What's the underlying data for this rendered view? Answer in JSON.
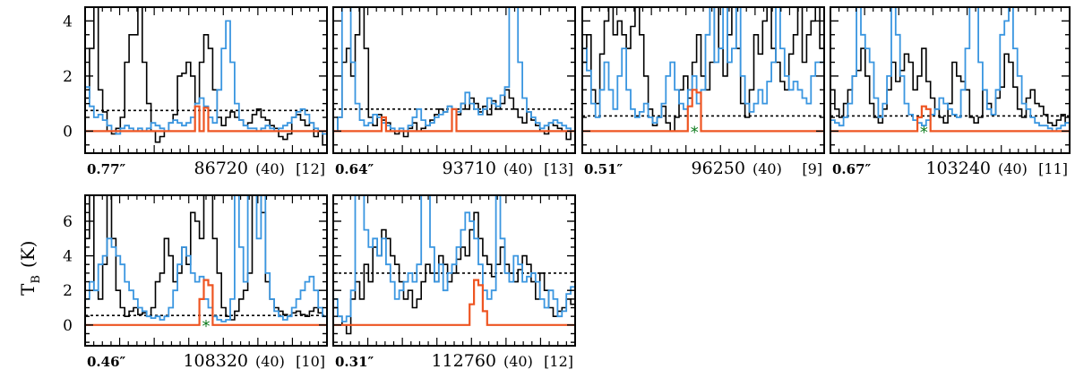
{
  "chart_data": {
    "type": "line",
    "ylabel": "T",
    "ylabel_sub": "B",
    "ylabel_unit": "(K)",
    "series_colors": {
      "observed": "#000000",
      "model_full": "#3a96e0",
      "model_species": "#ee5522",
      "noise_level": "#000000",
      "marker": "#0a7a1a"
    },
    "panels": [
      {
        "beam": "0.77″",
        "frequency": "86720",
        "width": "(40)",
        "index": "[12]",
        "ylim": [
          -0.8,
          4.5
        ],
        "yticks": [
          "0",
          "2",
          "4"
        ],
        "noise": 0.75,
        "star": false,
        "black": [
          1.2,
          3.0,
          4.5,
          1.5,
          0.7,
          0.0,
          -0.1,
          0.1,
          0.5,
          2.5,
          3.5,
          3.5,
          4.5,
          2.5,
          1.0,
          0.0,
          -0.4,
          -0.2,
          0.0,
          0.3,
          0.6,
          2.0,
          2.1,
          2.5,
          2.0,
          1.0,
          2.5,
          3.5,
          3.0,
          1.5,
          0.5,
          0.2,
          0.5,
          0.7,
          0.5,
          0.4,
          0.2,
          0.3,
          0.6,
          0.8,
          0.5,
          0.4,
          0.2,
          0.1,
          -0.2,
          -0.3,
          -0.1,
          0.5,
          0.6,
          0.4,
          0.2,
          0.3,
          -0.2,
          0.0,
          -0.5
        ],
        "blue": [
          1.6,
          0.9,
          0.5,
          0.6,
          0.4,
          0.2,
          0.0,
          -0.1,
          0.1,
          0.2,
          0.1,
          0.0,
          0.1,
          0.0,
          0.1,
          0.3,
          0.2,
          0.1,
          0.0,
          0.3,
          0.4,
          0.3,
          0.2,
          0.3,
          0.5,
          1.0,
          1.2,
          0.9,
          0.5,
          0.3,
          1.5,
          3.0,
          4.0,
          2.5,
          1.0,
          0.4,
          0.2,
          0.1,
          0.1,
          0.0,
          0.1,
          0.2,
          0.1,
          0.0,
          0.1,
          0.2,
          0.3,
          0.5,
          0.7,
          0.8,
          0.6,
          0.3,
          0.1,
          0.0,
          -0.1
        ],
        "orange": [
          [
            25,
            0.9
          ],
          [
            27,
            0.85
          ]
        ]
      },
      {
        "beam": "0.64″",
        "frequency": "93710",
        "width": "(40)",
        "index": "[13]",
        "ylim": [
          -0.8,
          4.5
        ],
        "yticks": [],
        "noise": 0.8,
        "star": false,
        "black": [
          0.0,
          0.5,
          2.5,
          3.0,
          2.0,
          3.5,
          4.5,
          3.0,
          0.5,
          0.2,
          0.6,
          0.4,
          0.3,
          0.0,
          -0.1,
          0.0,
          -0.2,
          0.1,
          0.3,
          0.0,
          0.1,
          0.2,
          0.4,
          0.6,
          0.8,
          0.7,
          0.9,
          0.8,
          0.6,
          1.0,
          0.8,
          1.2,
          1.0,
          0.7,
          0.9,
          0.6,
          1.1,
          0.8,
          1.0,
          1.5,
          1.2,
          0.8,
          0.5,
          0.3,
          0.7,
          0.4,
          0.2,
          0.0,
          -0.1,
          0.3,
          0.2,
          0.1,
          0.0,
          -0.3,
          0.0
        ],
        "blue": [
          0.0,
          0.5,
          4.5,
          4.5,
          2.5,
          1.0,
          0.4,
          0.2,
          0.3,
          0.6,
          0.5,
          0.3,
          0.2,
          0.1,
          0.0,
          0.1,
          0.0,
          0.2,
          0.5,
          0.8,
          0.4,
          0.2,
          0.3,
          0.5,
          0.6,
          0.7,
          0.9,
          0.8,
          0.7,
          1.0,
          1.4,
          1.0,
          0.8,
          0.6,
          0.8,
          1.2,
          1.0,
          0.9,
          1.3,
          1.6,
          4.5,
          4.5,
          2.5,
          1.2,
          0.7,
          0.5,
          0.3,
          0.1,
          0.2,
          0.3,
          0.4,
          0.3,
          0.2,
          0.1,
          0.0
        ],
        "orange": [
          [
            11,
            0.5
          ],
          [
            27,
            0.8
          ]
        ]
      },
      {
        "beam": "0.51″",
        "frequency": "96250",
        "width": "(40)",
        "index": "[9]",
        "ylim": [
          -0.8,
          4.5
        ],
        "yticks": [],
        "noise": 0.55,
        "star": true,
        "black": [
          2.5,
          3.5,
          1.5,
          1.0,
          2.8,
          4.0,
          4.5,
          3.5,
          4.0,
          3.5,
          3.0,
          3.8,
          4.5,
          3.5,
          2.0,
          0.8,
          0.2,
          0.5,
          0.9,
          0.3,
          0.0,
          0.5,
          1.5,
          2.0,
          1.2,
          2.5,
          3.5,
          2.0,
          1.5,
          2.5,
          4.5,
          3.0,
          2.0,
          3.5,
          4.5,
          3.0,
          1.0,
          0.5,
          1.5,
          3.5,
          2.8,
          4.0,
          4.5,
          3.0,
          2.5,
          1.8,
          1.5,
          2.8,
          3.5,
          4.5,
          2.5,
          3.5,
          4.0,
          4.5,
          3.0
        ],
        "blue": [
          3.0,
          2.2,
          1.0,
          0.5,
          1.5,
          2.5,
          1.5,
          0.8,
          2.0,
          3.0,
          1.5,
          0.8,
          0.5,
          0.7,
          1.0,
          0.5,
          0.3,
          0.5,
          1.0,
          2.0,
          2.5,
          1.5,
          1.0,
          0.8,
          1.5,
          2.0,
          1.0,
          1.5,
          3.5,
          4.5,
          2.5,
          3.0,
          4.5,
          2.5,
          3.0,
          4.5,
          2.0,
          1.0,
          0.7,
          1.0,
          1.5,
          1.0,
          1.8,
          2.5,
          4.5,
          3.0,
          2.0,
          1.5,
          1.8,
          1.5,
          1.2,
          1.0,
          2.0,
          2.5,
          2.5
        ],
        "orange": [
          [
            24,
            0.9
          ],
          [
            25,
            1.5
          ],
          [
            26,
            1.4
          ]
        ]
      },
      {
        "beam": "0.67″",
        "frequency": "103240",
        "width": "(40)",
        "index": "[11]",
        "ylim": [
          -0.8,
          4.5
        ],
        "yticks": [],
        "noise": 0.55,
        "star": true,
        "black": [
          1.5,
          0.8,
          0.5,
          1.0,
          1.5,
          2.0,
          2.2,
          3.0,
          2.0,
          1.0,
          0.5,
          0.3,
          0.8,
          1.5,
          2.5,
          1.8,
          2.2,
          2.8,
          2.5,
          1.5,
          2.0,
          3.0,
          1.8,
          1.2,
          0.8,
          0.5,
          0.3,
          1.0,
          2.5,
          2.0,
          1.8,
          1.5,
          0.5,
          0.3,
          0.5,
          1.5,
          1.0,
          0.6,
          1.2,
          1.6,
          2.8,
          2.5,
          1.6,
          0.8,
          0.5,
          1.2,
          1.5,
          1.0,
          0.9,
          0.6,
          0.3,
          0.2,
          0.4,
          0.6,
          0.3
        ],
        "blue": [
          0.4,
          0.3,
          0.2,
          0.5,
          1.0,
          2.0,
          4.5,
          3.5,
          3.0,
          2.5,
          1.2,
          0.5,
          1.0,
          2.0,
          4.5,
          3.5,
          2.0,
          1.0,
          0.6,
          0.4,
          0.3,
          0.2,
          0.4,
          0.6,
          0.8,
          1.2,
          1.0,
          0.8,
          0.6,
          0.5,
          1.5,
          3.0,
          4.5,
          4.5,
          2.5,
          1.5,
          0.8,
          0.6,
          1.5,
          3.5,
          4.0,
          4.5,
          3.0,
          2.0,
          1.0,
          0.8,
          0.5,
          0.3,
          0.2,
          0.2,
          0.1,
          0.0,
          0.1,
          0.2,
          0.3
        ],
        "orange": [
          [
            20,
            0.5
          ],
          [
            21,
            0.9
          ],
          [
            22,
            0.8
          ]
        ]
      },
      {
        "beam": "0.46″",
        "frequency": "108320",
        "width": "(40)",
        "index": "[10]",
        "ylim": [
          -1.2,
          7.5
        ],
        "yticks": [
          "0",
          "2",
          "4",
          "6"
        ],
        "noise": 0.55,
        "star": true,
        "black": [
          5.0,
          7.5,
          2.0,
          1.5,
          3.5,
          7.5,
          5.0,
          2.0,
          1.0,
          0.5,
          0.8,
          1.0,
          0.6,
          0.7,
          0.5,
          1.0,
          2.5,
          3.0,
          5.0,
          4.0,
          2.5,
          3.0,
          4.5,
          3.5,
          6.5,
          6.0,
          5.0,
          7.5,
          7.5,
          5.0,
          3.0,
          1.0,
          0.5,
          0.3,
          0.8,
          1.5,
          2.0,
          3.0,
          7.5,
          7.5,
          6.5,
          2.5,
          1.5,
          1.0,
          0.8,
          0.6,
          0.5,
          0.7,
          0.8,
          0.6,
          0.5,
          0.8,
          1.0,
          0.7,
          0.5
        ],
        "blue": [
          1.5,
          2.5,
          2.0,
          3.5,
          4.0,
          5.0,
          4.5,
          4.0,
          3.5,
          2.5,
          2.0,
          1.5,
          1.0,
          0.8,
          0.5,
          0.4,
          0.5,
          0.3,
          0.5,
          1.0,
          2.0,
          3.5,
          4.5,
          4.0,
          3.0,
          2.5,
          2.8,
          1.5,
          1.0,
          0.5,
          0.3,
          0.2,
          0.3,
          1.5,
          7.5,
          4.5,
          2.5,
          7.5,
          7.5,
          5.0,
          7.5,
          3.0,
          1.5,
          0.8,
          0.5,
          0.3,
          0.5,
          1.0,
          1.5,
          2.0,
          2.5,
          2.8,
          2.0,
          1.0,
          0.5
        ],
        "orange": [
          [
            26,
            1.5
          ],
          [
            27,
            2.6
          ],
          [
            28,
            2.3
          ]
        ]
      },
      {
        "beam": "0.31″",
        "frequency": "112760",
        "width": "(40)",
        "index": "[12]",
        "ylim": [
          -1.2,
          7.5
        ],
        "yticks": [],
        "noise": 3.0,
        "star": false,
        "black": [
          1.0,
          0.5,
          0.0,
          -0.5,
          1.5,
          2.5,
          1.5,
          3.5,
          2.5,
          4.5,
          4.0,
          5.5,
          5.0,
          4.0,
          3.5,
          2.5,
          1.5,
          2.0,
          1.0,
          1.5,
          2.5,
          3.5,
          3.0,
          2.5,
          4.0,
          3.5,
          2.5,
          3.0,
          3.8,
          4.5,
          4.0,
          5.5,
          6.5,
          5.0,
          4.0,
          3.5,
          2.8,
          3.5,
          4.5,
          3.5,
          3.0,
          2.5,
          3.2,
          4.0,
          3.5,
          2.5,
          1.5,
          3.0,
          2.0,
          1.0,
          0.5,
          0.8,
          1.0,
          1.5,
          1.2
        ],
        "blue": [
          1.5,
          0.5,
          0.2,
          0.5,
          2.0,
          7.5,
          7.5,
          5.5,
          4.5,
          5.0,
          4.0,
          5.0,
          3.5,
          2.5,
          1.5,
          2.0,
          2.5,
          3.0,
          2.5,
          3.5,
          7.5,
          7.5,
          4.5,
          2.5,
          3.5,
          2.0,
          3.0,
          3.5,
          4.5,
          5.5,
          6.5,
          6.0,
          5.0,
          3.5,
          2.0,
          1.5,
          2.0,
          7.5,
          5.0,
          3.0,
          2.5,
          4.0,
          3.5,
          2.5,
          2.8,
          3.0,
          2.5,
          1.5,
          1.0,
          2.0,
          1.5,
          0.5,
          0.8,
          1.8,
          2.2
        ],
        "orange": [
          [
            31,
            1.2
          ],
          [
            32,
            2.6
          ],
          [
            33,
            2.3
          ],
          [
            34,
            0.8
          ]
        ]
      }
    ]
  }
}
